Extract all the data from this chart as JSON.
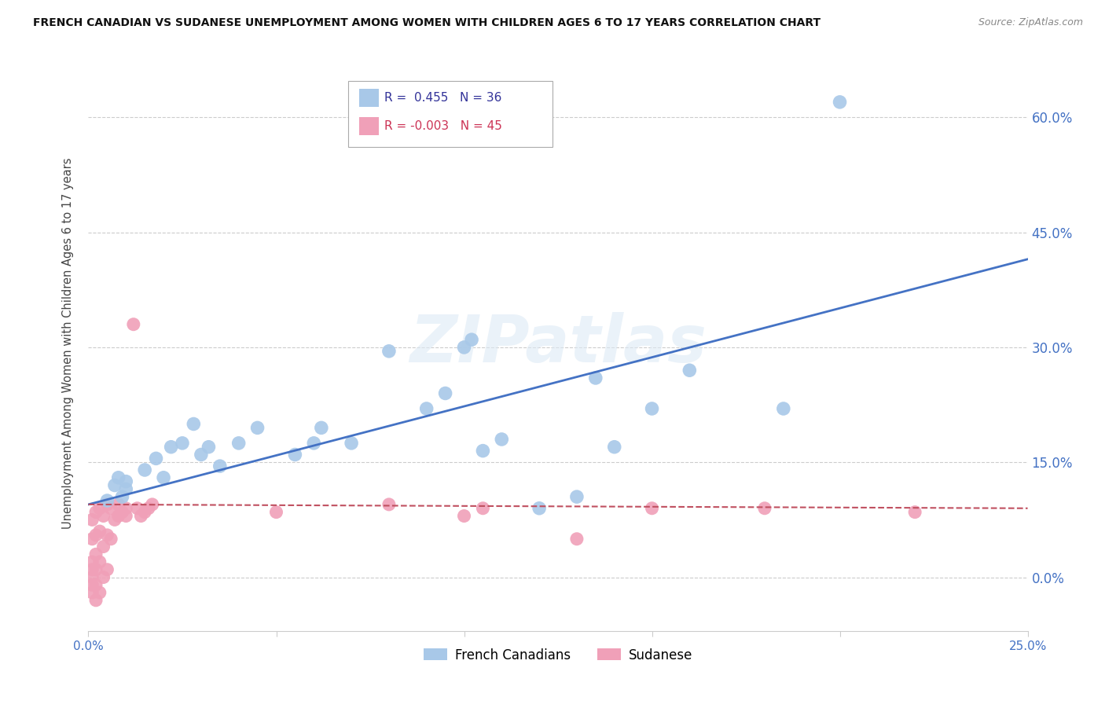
{
  "title": "FRENCH CANADIAN VS SUDANESE UNEMPLOYMENT AMONG WOMEN WITH CHILDREN AGES 6 TO 17 YEARS CORRELATION CHART",
  "source": "Source: ZipAtlas.com",
  "ylabel": "Unemployment Among Women with Children Ages 6 to 17 years",
  "xlim": [
    0.0,
    0.25
  ],
  "ylim": [
    -0.07,
    0.68
  ],
  "yticks": [
    0.0,
    0.15,
    0.3,
    0.45,
    0.6
  ],
  "ytick_labels": [
    "0.0%",
    "15.0%",
    "30.0%",
    "45.0%",
    "60.0%"
  ],
  "xticks": [
    0.0,
    0.05,
    0.1,
    0.15,
    0.2,
    0.25
  ],
  "xtick_labels": [
    "0.0%",
    "",
    "",
    "",
    "",
    "25.0%"
  ],
  "fc_R": 0.455,
  "fc_N": 36,
  "su_R": -0.003,
  "su_N": 45,
  "fc_color": "#a8c8e8",
  "su_color": "#f0a0b8",
  "fc_line_color": "#4472c4",
  "su_line_color": "#c05060",
  "background_color": "#ffffff",
  "watermark": "ZIPatlas",
  "fc_line_x0": 0.0,
  "fc_line_y0": 0.095,
  "fc_line_x1": 0.25,
  "fc_line_y1": 0.415,
  "su_line_x0": 0.0,
  "su_line_y0": 0.095,
  "su_line_x1": 0.25,
  "su_line_y1": 0.09,
  "french_canadians_x": [
    0.005,
    0.007,
    0.008,
    0.009,
    0.01,
    0.01,
    0.015,
    0.018,
    0.02,
    0.022,
    0.025,
    0.028,
    0.03,
    0.032,
    0.035,
    0.04,
    0.045,
    0.055,
    0.06,
    0.062,
    0.07,
    0.08,
    0.09,
    0.095,
    0.1,
    0.102,
    0.105,
    0.11,
    0.12,
    0.13,
    0.135,
    0.14,
    0.15,
    0.16,
    0.185,
    0.2
  ],
  "french_canadians_y": [
    0.1,
    0.12,
    0.13,
    0.105,
    0.115,
    0.125,
    0.14,
    0.155,
    0.13,
    0.17,
    0.175,
    0.2,
    0.16,
    0.17,
    0.145,
    0.175,
    0.195,
    0.16,
    0.175,
    0.195,
    0.175,
    0.295,
    0.22,
    0.24,
    0.3,
    0.31,
    0.165,
    0.18,
    0.09,
    0.105,
    0.26,
    0.17,
    0.22,
    0.27,
    0.22,
    0.62
  ],
  "sudanese_x": [
    0.001,
    0.001,
    0.001,
    0.001,
    0.001,
    0.001,
    0.001,
    0.002,
    0.002,
    0.002,
    0.002,
    0.002,
    0.002,
    0.003,
    0.003,
    0.003,
    0.003,
    0.004,
    0.004,
    0.004,
    0.005,
    0.005,
    0.005,
    0.006,
    0.006,
    0.007,
    0.008,
    0.008,
    0.009,
    0.01,
    0.01,
    0.012,
    0.013,
    0.014,
    0.015,
    0.016,
    0.017,
    0.05,
    0.08,
    0.1,
    0.105,
    0.13,
    0.15,
    0.18,
    0.22
  ],
  "sudanese_y": [
    -0.02,
    -0.01,
    0.0,
    0.01,
    0.02,
    0.05,
    0.075,
    -0.03,
    -0.01,
    0.01,
    0.03,
    0.055,
    0.085,
    -0.02,
    0.02,
    0.06,
    0.09,
    0.0,
    0.04,
    0.08,
    0.01,
    0.055,
    0.095,
    0.05,
    0.09,
    0.075,
    0.08,
    0.095,
    0.085,
    0.08,
    0.09,
    0.33,
    0.09,
    0.08,
    0.085,
    0.09,
    0.095,
    0.085,
    0.095,
    0.08,
    0.09,
    0.05,
    0.09,
    0.09,
    0.085
  ]
}
